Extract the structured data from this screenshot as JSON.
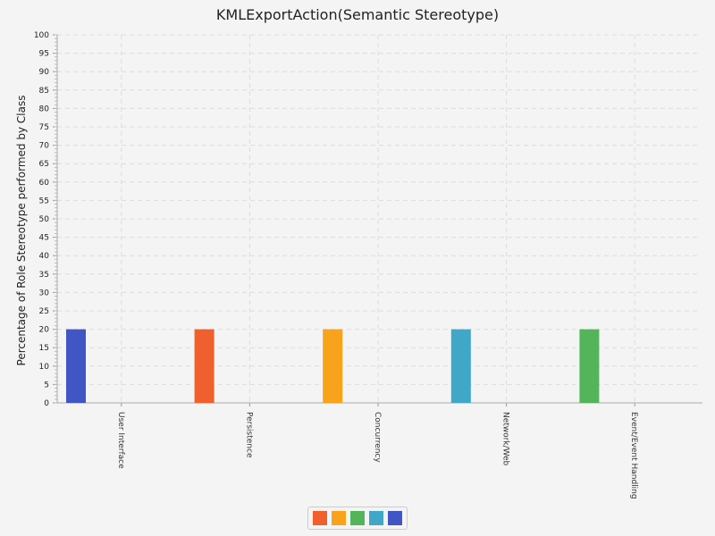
{
  "chart_data": {
    "type": "bar",
    "title": "KMLExportAction(Semantic Stereotype)",
    "ylabel": "Percentage of Role Stereotype performed by Class",
    "xlabel": "",
    "categories": [
      "User Interface",
      "Persistence",
      "Concurrency",
      "Network/Web",
      "Event/Event Handling"
    ],
    "series": [
      {
        "values": [
          20,
          null,
          null,
          null,
          null
        ],
        "color": "#4255c4"
      },
      {
        "values": [
          null,
          20,
          null,
          null,
          null
        ],
        "color": "#f0602e"
      },
      {
        "values": [
          null,
          null,
          20,
          null,
          null
        ],
        "color": "#f9a21b"
      },
      {
        "values": [
          null,
          null,
          null,
          20,
          null
        ],
        "color": "#40a7c9"
      },
      {
        "values": [
          null,
          null,
          null,
          null,
          20
        ],
        "color": "#53b45a"
      }
    ],
    "ylim": [
      0,
      100
    ],
    "ytick_step": 5,
    "grid": true,
    "legend_position": "bottom-center",
    "legend_colors": [
      "#f0602e",
      "#f9a21b",
      "#53b45a",
      "#40a7c9",
      "#4255c4"
    ]
  }
}
